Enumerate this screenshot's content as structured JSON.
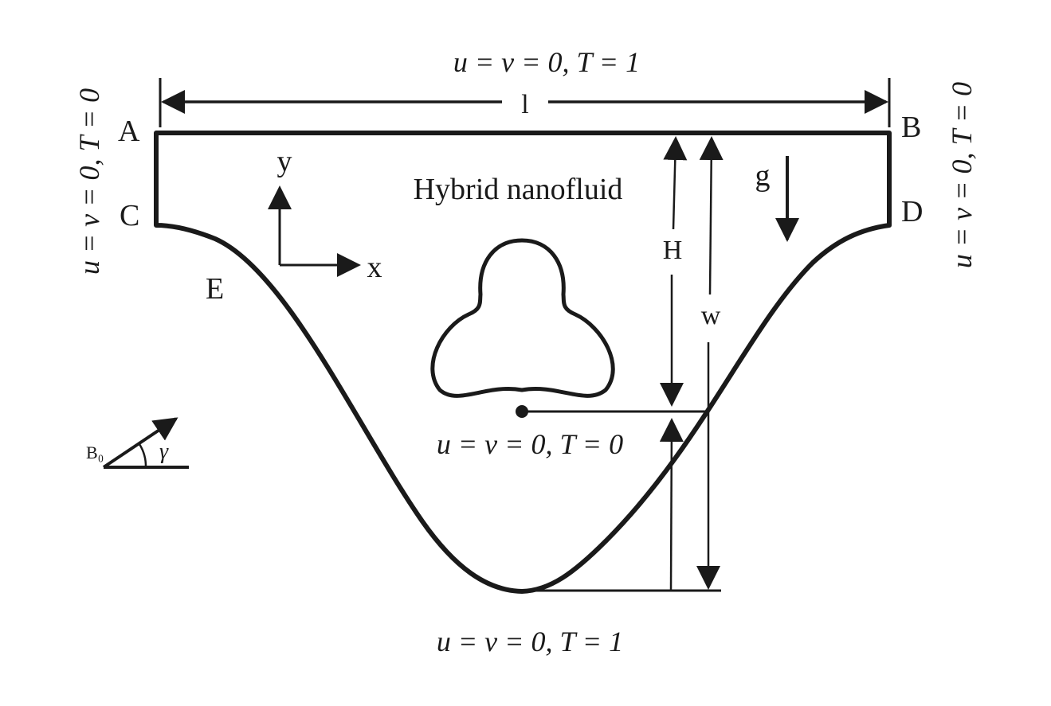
{
  "labels": {
    "top_bc": "u = v = 0, T = 1",
    "bottom_bc": "u = v = 0, T = 1",
    "inner_bc": "u = v = 0, T = 0",
    "left_bc": "u = v = 0, T = 0",
    "right_bc": "u = v = 0, T = 0",
    "fluid": "Hybrid nanofluid",
    "point_a": "A",
    "point_b": "B",
    "point_c": "C",
    "point_d": "D",
    "point_e": "E",
    "dim_l": "l",
    "dim_h": "H",
    "dim_w": "w",
    "gravity": "g",
    "axis_x": "x",
    "axis_y": "y",
    "field": "B₀",
    "angle": "γ"
  },
  "colors": {
    "stroke": "#1a1a1a",
    "background": "#ffffff"
  }
}
